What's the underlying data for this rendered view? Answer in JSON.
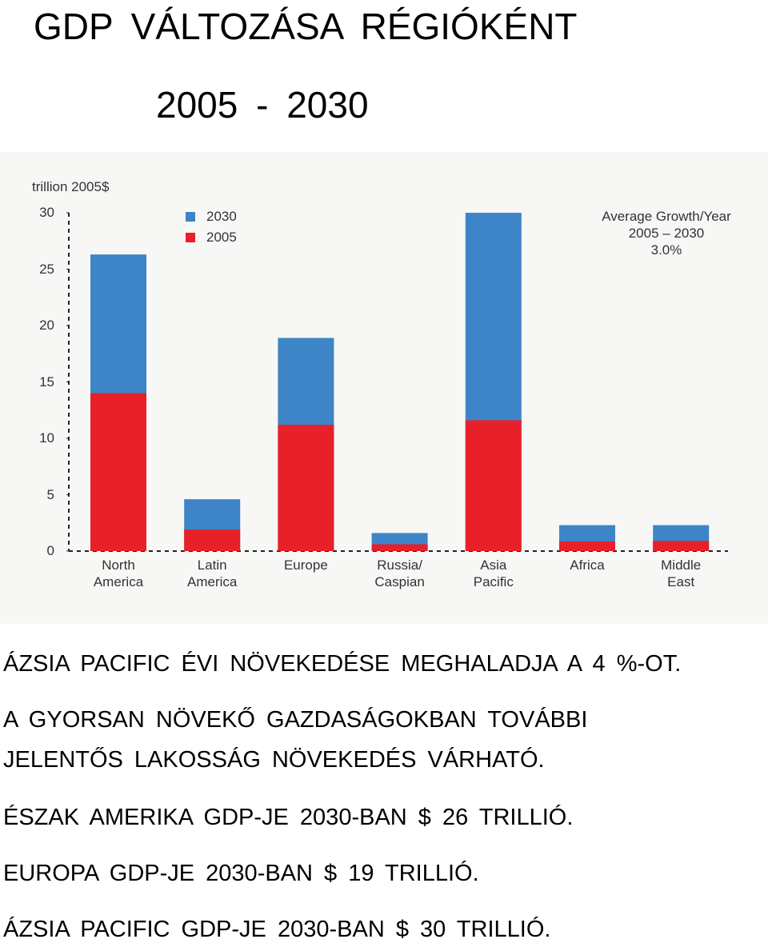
{
  "title": "GDP VÁLTOZÁSA RÉGIÓKÉNT",
  "subtitle": "2005 - 2030",
  "chart_data": {
    "type": "bar",
    "y_label": "trillion 2005$",
    "annotation": "Average Growth/Year\n2005 – 2030\n3.0%",
    "categories": [
      "North\nAmerica",
      "Latin\nAmerica",
      "Europe",
      "Russia/\nCaspian",
      "Asia\nPacific",
      "Africa",
      "Middle\nEast"
    ],
    "series": [
      {
        "name": "2030",
        "color": "#3d85c6",
        "values": [
          26.3,
          4.6,
          18.9,
          1.6,
          30.0,
          2.3,
          2.3
        ]
      },
      {
        "name": "2005",
        "color": "#e8202a",
        "values": [
          14.0,
          1.9,
          11.2,
          0.6,
          11.6,
          0.85,
          0.9
        ]
      }
    ],
    "ylim": [
      0,
      30
    ],
    "yticks": [
      0,
      5,
      10,
      15,
      20,
      25,
      30
    ]
  },
  "paragraphs": [
    "ÁZSIA PACIFIC ÉVI NÖVEKEDÉSE MEGHALADJA A 4 %-OT.",
    "A GYORSAN NÖVEKŐ GAZDASÁGOKBAN TOVÁBBI\nJELENTŐS LAKOSSÁG NÖVEKEDÉS VÁRHATÓ.",
    "ÉSZAK AMERIKA GDP-JE 2030-BAN $ 26 TRILLIÓ.",
    "EUROPA GDP-JE 2030-BAN $ 19 TRILLIÓ.",
    "ÁZSIA PACIFIC GDP-JE 2030-BAN $ 30 TRILLIÓ."
  ]
}
